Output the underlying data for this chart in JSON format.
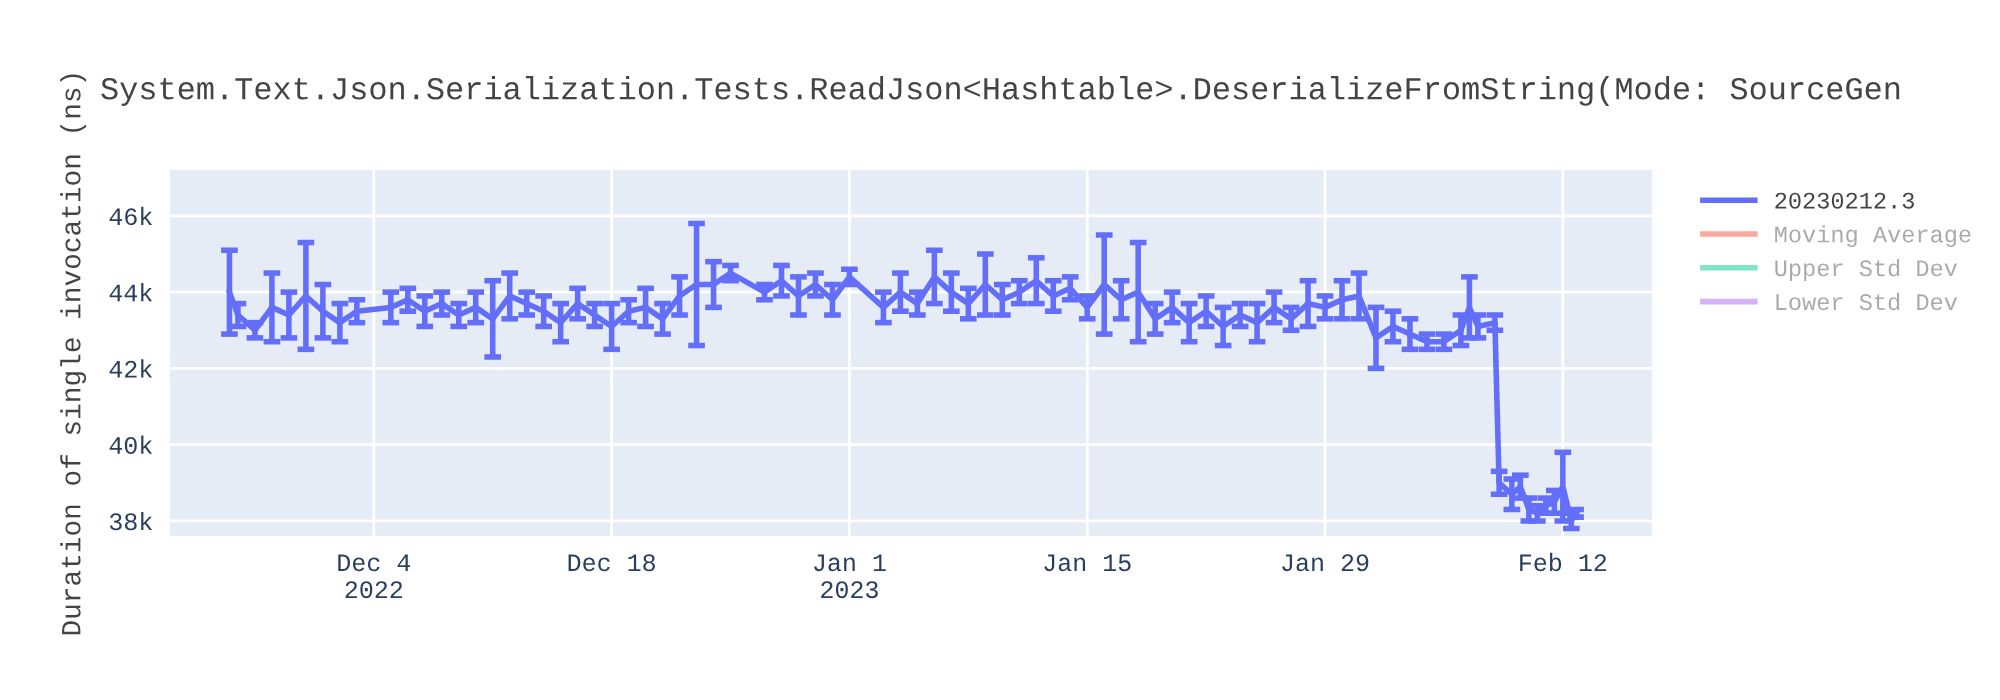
{
  "chart_data": {
    "type": "line",
    "title": "System.Text.Json.Serialization.Tests.ReadJson<Hashtable>.DeserializeFromString(Mode: SourceGen",
    "ylabel": "Duration of single invocation (ns)",
    "xlim": [
      "2022-11-22",
      "2023-02-17T06:00"
    ],
    "xticks": [
      {
        "value": "2022-12-04",
        "label": "Dec 4\n2022"
      },
      {
        "value": "2022-12-18",
        "label": "Dec 18"
      },
      {
        "value": "2023-01-01",
        "label": "Jan 1\n2023"
      },
      {
        "value": "2023-01-15",
        "label": "Jan 15"
      },
      {
        "value": "2023-01-29",
        "label": "Jan 29"
      },
      {
        "value": "2023-02-12",
        "label": "Feb 12"
      }
    ],
    "ylim": [
      37600,
      47200
    ],
    "yticks": [
      {
        "value": 38000,
        "label": "38k"
      },
      {
        "value": 40000,
        "label": "40k"
      },
      {
        "value": 42000,
        "label": "42k"
      },
      {
        "value": 44000,
        "label": "44k"
      },
      {
        "value": 46000,
        "label": "46k"
      }
    ],
    "grid": true,
    "legend": "right",
    "marker": "none",
    "line_style": "solid",
    "x": [
      "2022-11-25T12:00",
      "2022-11-26",
      "2022-11-27",
      "2022-11-28",
      "2022-11-29",
      "2022-11-30",
      "2022-12-01",
      "2022-12-02",
      "2022-12-03",
      "2022-12-05",
      "2022-12-06",
      "2022-12-07",
      "2022-12-08",
      "2022-12-09",
      "2022-12-10",
      "2022-12-11",
      "2022-12-12",
      "2022-12-13",
      "2022-12-14",
      "2022-12-15",
      "2022-12-16",
      "2022-12-17",
      "2022-12-18",
      "2022-12-19",
      "2022-12-20",
      "2022-12-21",
      "2022-12-22",
      "2022-12-23",
      "2022-12-24",
      "2022-12-25",
      "2022-12-27",
      "2022-12-28",
      "2022-12-29",
      "2022-12-30",
      "2022-12-31",
      "2023-01-01",
      "2023-01-03",
      "2023-01-04",
      "2023-01-05",
      "2023-01-06",
      "2023-01-07",
      "2023-01-08",
      "2023-01-09",
      "2023-01-10",
      "2023-01-11",
      "2023-01-12",
      "2023-01-13",
      "2023-01-14",
      "2023-01-15",
      "2023-01-16",
      "2023-01-17",
      "2023-01-18",
      "2023-01-19",
      "2023-01-20",
      "2023-01-21",
      "2023-01-22",
      "2023-01-23",
      "2023-01-24",
      "2023-01-25",
      "2023-01-26",
      "2023-01-27",
      "2023-01-28",
      "2023-01-29",
      "2023-01-30",
      "2023-01-31",
      "2023-02-01",
      "2023-02-02",
      "2023-02-03",
      "2023-02-04",
      "2023-02-05",
      "2023-02-06",
      "2023-02-06T12:00",
      "2023-02-07",
      "2023-02-08",
      "2023-02-08T06:00",
      "2023-02-09",
      "2023-02-09T12:00",
      "2023-02-10",
      "2023-02-10T12:00",
      "2023-02-11",
      "2023-02-11T12:00",
      "2023-02-12",
      "2023-02-12T12:00",
      "2023-02-12T18:00"
    ],
    "series": [
      {
        "name": "20230212.3",
        "color": "#636efa",
        "values": [
          44000,
          43400,
          43000,
          43600,
          43400,
          43900,
          43500,
          43200,
          43500,
          43600,
          43800,
          43500,
          43700,
          43400,
          43600,
          43300,
          43900,
          43700,
          43500,
          43200,
          43700,
          43400,
          43100,
          43500,
          43600,
          43300,
          43900,
          44200,
          44200,
          44500,
          44000,
          44300,
          43900,
          44200,
          43800,
          44400,
          43600,
          44000,
          43700,
          44400,
          44000,
          43700,
          44200,
          43800,
          44000,
          44300,
          43900,
          44100,
          43600,
          44200,
          43800,
          44000,
          43300,
          43600,
          43200,
          43500,
          43100,
          43400,
          43200,
          43600,
          43300,
          43700,
          43600,
          43800,
          43900,
          42800,
          43100,
          42900,
          42700,
          42700,
          43000,
          43600,
          43100,
          43200,
          39000,
          38700,
          38900,
          38300,
          38200,
          38400,
          38500,
          38900,
          38000,
          38200
        ],
        "errors": [
          1100,
          300,
          200,
          900,
          600,
          1400,
          700,
          500,
          300,
          400,
          300,
          400,
          300,
          300,
          400,
          1000,
          600,
          300,
          400,
          500,
          400,
          300,
          600,
          300,
          500,
          400,
          500,
          1600,
          600,
          200,
          200,
          400,
          500,
          300,
          400,
          200,
          400,
          500,
          300,
          700,
          500,
          400,
          800,
          400,
          300,
          600,
          400,
          300,
          300,
          1300,
          500,
          1300,
          400,
          400,
          500,
          400,
          500,
          300,
          500,
          400,
          300,
          600,
          300,
          500,
          600,
          800,
          400,
          400,
          200,
          200,
          400,
          800,
          300,
          200,
          300,
          400,
          300,
          300,
          200,
          200,
          300,
          900,
          200,
          100
        ]
      },
      {
        "name": "Moving Average",
        "color": "#ef553b",
        "values": [
          null,
          null,
          null,
          null,
          null,
          null,
          null,
          null,
          null,
          null,
          null,
          null,
          null,
          null,
          null,
          null,
          null,
          null,
          null,
          null,
          null,
          null,
          null,
          null,
          null,
          null,
          null,
          null,
          null,
          null,
          null,
          null,
          null,
          null,
          null,
          null,
          null,
          null,
          null,
          null,
          null,
          null,
          null,
          null,
          null,
          null,
          null,
          null,
          null,
          null,
          null,
          null,
          null,
          null,
          null,
          null,
          null,
          null,
          null,
          null,
          null,
          null,
          null,
          null,
          null,
          null,
          null,
          null,
          null,
          null,
          null,
          null,
          null,
          null,
          null,
          null,
          null,
          null,
          null,
          null,
          null,
          null,
          null,
          null
        ]
      },
      {
        "name": "Upper Std Dev",
        "color": "#00cc96",
        "values": [
          null,
          null,
          null,
          null,
          null,
          null,
          null,
          null,
          null,
          null,
          null,
          null,
          null,
          null,
          null,
          null,
          null,
          null,
          null,
          null,
          null,
          null,
          null,
          null,
          null,
          null,
          null,
          null,
          null,
          null,
          null,
          null,
          null,
          null,
          null,
          null,
          null,
          null,
          null,
          null,
          null,
          null,
          null,
          null,
          null,
          null,
          null,
          null,
          null,
          null,
          null,
          null,
          null,
          null,
          null,
          null,
          null,
          null,
          null,
          null,
          null,
          null,
          null,
          null,
          null,
          null,
          null,
          null,
          null,
          null,
          null,
          null,
          null,
          null,
          null,
          null,
          null,
          null,
          null,
          null,
          null,
          null,
          null,
          null
        ]
      },
      {
        "name": "Lower Std Dev",
        "color": "#ab63fa",
        "values": [
          null,
          null,
          null,
          null,
          null,
          null,
          null,
          null,
          null,
          null,
          null,
          null,
          null,
          null,
          null,
          null,
          null,
          null,
          null,
          null,
          null,
          null,
          null,
          null,
          null,
          null,
          null,
          null,
          null,
          null,
          null,
          null,
          null,
          null,
          null,
          null,
          null,
          null,
          null,
          null,
          null,
          null,
          null,
          null,
          null,
          null,
          null,
          null,
          null,
          null,
          null,
          null,
          null,
          null,
          null,
          null,
          null,
          null,
          null,
          null,
          null,
          null,
          null,
          null,
          null,
          null,
          null,
          null,
          null,
          null,
          null,
          null,
          null,
          null,
          null,
          null,
          null,
          null,
          null,
          null,
          null,
          null,
          null,
          null
        ]
      }
    ]
  }
}
